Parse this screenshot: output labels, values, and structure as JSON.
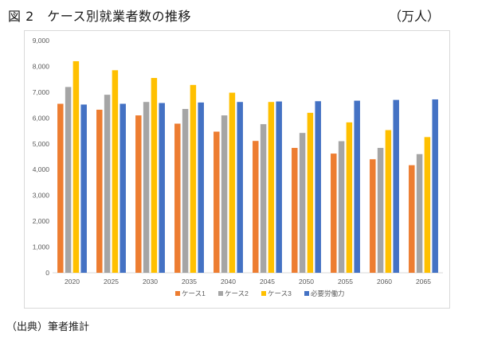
{
  "figure": {
    "title": "図 2　ケース別就業者数の推移",
    "unit": "（万人）",
    "source": "（出典）筆者推計"
  },
  "chart_data": {
    "type": "bar",
    "title": "ケース別就業者数の推移",
    "xlabel": "",
    "ylabel": "",
    "ylim": [
      0,
      9000
    ],
    "yticks": [
      0,
      1000,
      2000,
      3000,
      4000,
      5000,
      6000,
      7000,
      8000,
      9000
    ],
    "ytick_labels": [
      "0",
      "1,000",
      "2,000",
      "3,000",
      "4,000",
      "5,000",
      "6,000",
      "7,000",
      "8,000",
      "9,000"
    ],
    "grid": false,
    "legend_position": "bottom",
    "categories": [
      "2020",
      "2025",
      "2030",
      "2035",
      "2040",
      "2045",
      "2050",
      "2055",
      "2060",
      "2065"
    ],
    "series": [
      {
        "name": "ケース1",
        "color": "#ed7d31",
        "values": [
          6550,
          6320,
          6100,
          5780,
          5470,
          5110,
          4840,
          4620,
          4400,
          4170
        ]
      },
      {
        "name": "ケース2",
        "color": "#a5a5a5",
        "values": [
          7200,
          6900,
          6620,
          6350,
          6100,
          5760,
          5420,
          5100,
          4840,
          4600
        ]
      },
      {
        "name": "ケース3",
        "color": "#ffc000",
        "values": [
          8200,
          7850,
          7550,
          7280,
          6980,
          6620,
          6200,
          5830,
          5530,
          5260
        ]
      },
      {
        "name": "必要労働力",
        "color": "#4472c4",
        "values": [
          6520,
          6550,
          6580,
          6600,
          6620,
          6640,
          6650,
          6670,
          6700,
          6720
        ]
      }
    ]
  }
}
